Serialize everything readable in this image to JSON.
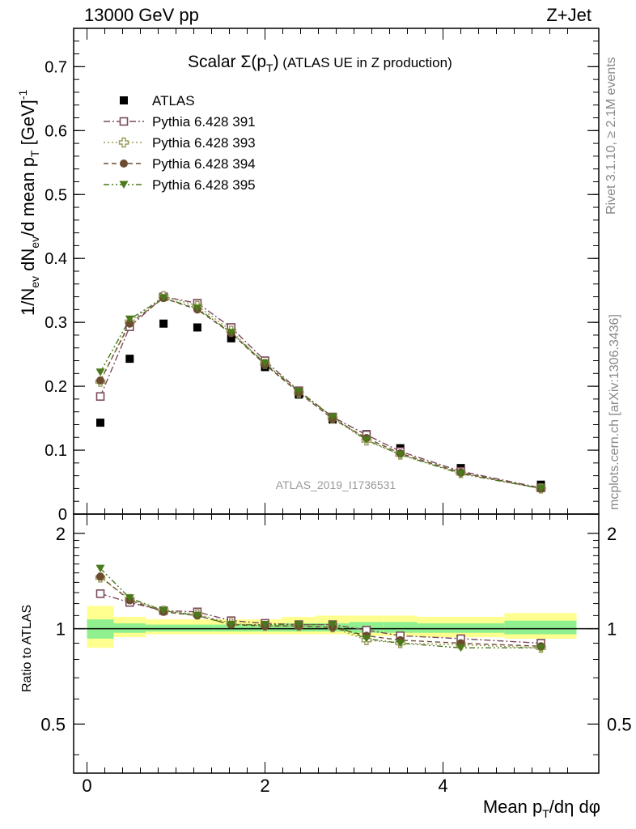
{
  "header": {
    "left": "13000 GeV pp",
    "right": "Z+Jet"
  },
  "side_text": {
    "rivet": "Rivet 3.1.10, ≥ 2.1M events",
    "mcplots": "mcplots.cern.ch [arXiv:1306.3436]"
  },
  "chart_data": [
    {
      "type": "scatter",
      "title": "Scalar Σ(p_T) (ATLAS UE in Z production)",
      "title_parts": {
        "main": "Scalar Σ(p",
        "sub": "T",
        "close": ")",
        "suffix": " (ATLAS UE in Z production)"
      },
      "ylabel": "1/N_ev dN_ev/d mean p_T [GeV]^-1",
      "ylabel_parts": {
        "a": "1/N",
        "a_sub": "ev",
        "b": " dN",
        "b_sub": "ev",
        "c": "/d mean p",
        "c_sub": "T",
        "d": " [GeV]",
        "d_sup": "-1"
      },
      "watermark": "ATLAS_2019_I1736531",
      "xlim": [
        -0.15,
        5.75
      ],
      "ylim": [
        0,
        0.76
      ],
      "yticks": [
        0,
        0.1,
        0.2,
        0.3,
        0.4,
        0.5,
        0.6,
        0.7
      ],
      "ytick_labels": [
        "0",
        "0.1",
        "0.2",
        "0.3",
        "0.4",
        "0.5",
        "0.6",
        "0.7"
      ],
      "legend_position": "top-left",
      "x": [
        0.15,
        0.48,
        0.86,
        1.24,
        1.62,
        2.0,
        2.38,
        2.76,
        3.14,
        3.52,
        4.2,
        5.1
      ],
      "series": [
        {
          "name": "ATLAS",
          "color": "#000000",
          "marker": "square-filled",
          "line": "none",
          "values": [
            0.143,
            0.243,
            0.298,
            0.292,
            0.275,
            0.23,
            0.187,
            0.148,
            0.125,
            0.103,
            0.072,
            0.046
          ]
        },
        {
          "name": "Pythia 6.428 391",
          "color": "#7a4a5a",
          "marker": "square-open",
          "line": "dashdot",
          "values": [
            0.184,
            0.293,
            0.34,
            0.33,
            0.292,
            0.24,
            0.193,
            0.152,
            0.124,
            0.098,
            0.067,
            0.041
          ]
        },
        {
          "name": "Pythia 6.428 393",
          "color": "#9a9a5a",
          "marker": "cross-open",
          "line": "dotted",
          "values": [
            0.207,
            0.301,
            0.341,
            0.326,
            0.287,
            0.235,
            0.19,
            0.15,
            0.115,
            0.093,
            0.064,
            0.04
          ]
        },
        {
          "name": "Pythia 6.428 394",
          "color": "#6b4c30",
          "marker": "circle-filled",
          "line": "dashed",
          "values": [
            0.209,
            0.298,
            0.338,
            0.32,
            0.283,
            0.234,
            0.19,
            0.149,
            0.119,
            0.095,
            0.065,
            0.04
          ]
        },
        {
          "name": "Pythia 6.428 395",
          "color": "#4a7a1a",
          "marker": "triangle-down-filled",
          "line": "dashdotdot",
          "values": [
            0.222,
            0.305,
            0.338,
            0.322,
            0.284,
            0.236,
            0.192,
            0.152,
            0.116,
            0.093,
            0.063,
            0.04
          ]
        }
      ]
    },
    {
      "type": "scatter",
      "ylabel": "Ratio to ATLAS",
      "xlabel": "Mean p_T/dη dφ",
      "xlabel_parts": {
        "a": "Mean p",
        "a_sub": "T",
        "b": "/dη dφ"
      },
      "xlim": [
        -0.15,
        5.75
      ],
      "ylim": [
        0.35,
        2.3
      ],
      "ylog": true,
      "yticks": [
        0.5,
        1,
        2
      ],
      "ytick_labels": [
        "0.5",
        "1",
        "2"
      ],
      "xticks": [
        0,
        2,
        4
      ],
      "xtick_labels": [
        "0",
        "2",
        "4"
      ],
      "reference_line": 1,
      "band_edges": [
        0.0,
        0.3,
        0.66,
        1.05,
        1.43,
        1.81,
        2.19,
        2.57,
        2.95,
        3.33,
        3.71,
        4.69,
        5.5
      ],
      "band_inner": [
        [
          0.93,
          1.07
        ],
        [
          0.97,
          1.04
        ],
        [
          0.98,
          1.03
        ],
        [
          0.98,
          1.03
        ],
        [
          0.98,
          1.03
        ],
        [
          0.98,
          1.03
        ],
        [
          0.98,
          1.04
        ],
        [
          0.98,
          1.04
        ],
        [
          0.97,
          1.05
        ],
        [
          0.97,
          1.05
        ],
        [
          0.97,
          1.04
        ],
        [
          0.96,
          1.06
        ]
      ],
      "band_outer": [
        [
          0.87,
          1.18
        ],
        [
          0.94,
          1.09
        ],
        [
          0.96,
          1.07
        ],
        [
          0.96,
          1.07
        ],
        [
          0.96,
          1.07
        ],
        [
          0.96,
          1.07
        ],
        [
          0.96,
          1.09
        ],
        [
          0.96,
          1.1
        ],
        [
          0.95,
          1.1
        ],
        [
          0.95,
          1.1
        ],
        [
          0.94,
          1.09
        ],
        [
          0.93,
          1.12
        ]
      ],
      "band_colors": {
        "inner": "#90f090",
        "outer": "#ffff90"
      },
      "x": [
        0.15,
        0.48,
        0.86,
        1.24,
        1.62,
        2.0,
        2.38,
        2.76,
        3.14,
        3.52,
        4.2,
        5.1
      ],
      "series": [
        {
          "name": "Pythia 6.428 391",
          "color": "#7a4a5a",
          "marker": "square-open",
          "line": "dashdot",
          "values": [
            1.29,
            1.21,
            1.14,
            1.13,
            1.06,
            1.04,
            1.03,
            1.03,
            0.99,
            0.95,
            0.93,
            0.9
          ]
        },
        {
          "name": "Pythia 6.428 393",
          "color": "#9a9a5a",
          "marker": "cross-open",
          "line": "dotted",
          "values": [
            1.45,
            1.24,
            1.14,
            1.11,
            1.04,
            1.02,
            1.02,
            1.01,
            0.92,
            0.9,
            0.89,
            0.87
          ]
        },
        {
          "name": "Pythia 6.428 394",
          "color": "#6b4c30",
          "marker": "circle-filled",
          "line": "dashed",
          "values": [
            1.46,
            1.23,
            1.13,
            1.1,
            1.03,
            1.02,
            1.02,
            1.01,
            0.95,
            0.92,
            0.9,
            0.88
          ]
        },
        {
          "name": "Pythia 6.428 395",
          "color": "#4a7a1a",
          "marker": "triangle-down-filled",
          "line": "dashdotdot",
          "values": [
            1.55,
            1.25,
            1.14,
            1.1,
            1.03,
            1.03,
            1.03,
            1.03,
            0.93,
            0.9,
            0.87,
            0.87
          ]
        }
      ]
    }
  ]
}
